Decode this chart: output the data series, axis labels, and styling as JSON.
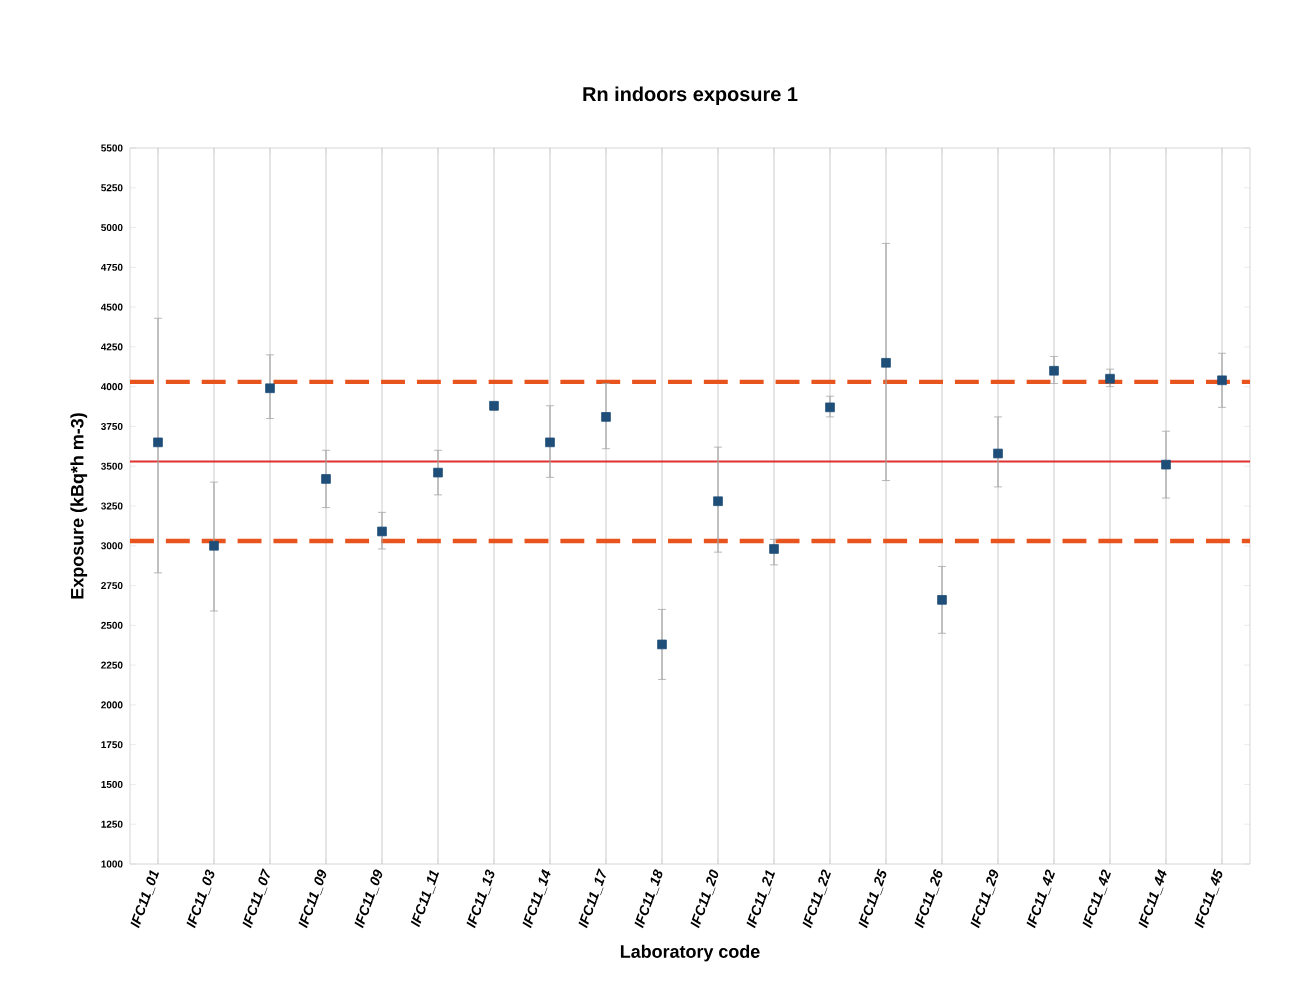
{
  "chart_data": {
    "type": "scatter",
    "title": "Rn indoors exposure 1",
    "xlabel": "Laboratory code",
    "ylabel": "Exposure (kBq*h m-3)",
    "categories": [
      "IFC11_01",
      "IFC11_03",
      "IFC11_07",
      "IFC11_09",
      "IFC11_09",
      "IFC11_11",
      "IFC11_13",
      "IFC11_14",
      "IFC11_17",
      "IFC11_18",
      "IFC11_20",
      "IFC11_21",
      "IFC11_22",
      "IFC11_25",
      "IFC11_26",
      "IFC11_29",
      "IFC11_42",
      "IFC11_42",
      "IFC11_44",
      "IFC11_45"
    ],
    "values": [
      3650,
      3000,
      3990,
      3420,
      3090,
      3460,
      3880,
      3650,
      3810,
      2380,
      3280,
      2980,
      3870,
      4150,
      2660,
      3580,
      4100,
      4050,
      3510,
      4040
    ],
    "errors": [
      [
        2830,
        4430
      ],
      [
        2590,
        3400
      ],
      [
        3800,
        4200
      ],
      [
        3240,
        3600
      ],
      [
        2980,
        3210
      ],
      [
        3320,
        3600
      ],
      [
        3850,
        3900
      ],
      [
        3430,
        3880
      ],
      [
        3610,
        4020
      ],
      [
        2160,
        2600
      ],
      [
        2960,
        3620
      ],
      [
        2880,
        3040
      ],
      [
        3810,
        3940
      ],
      [
        3410,
        4900
      ],
      [
        2450,
        2870
      ],
      [
        3370,
        3810
      ],
      [
        4020,
        4190
      ],
      [
        4000,
        4110
      ],
      [
        3300,
        3720
      ],
      [
        3870,
        4210
      ]
    ],
    "color": "#1f4e79",
    "marker": "square",
    "ylim": [
      1000,
      5500
    ],
    "yticks": [
      1000,
      1250,
      1500,
      1750,
      2000,
      2250,
      2500,
      2750,
      3000,
      3250,
      3500,
      3750,
      4000,
      4250,
      4500,
      4750,
      5000,
      5250,
      5500
    ],
    "ref_lines": [
      {
        "axis": "y",
        "value": 4030,
        "color": "#e8541e",
        "line_style": "dashed"
      },
      {
        "axis": "y",
        "value": 3530,
        "color": "#e03030",
        "line_style": "solid"
      },
      {
        "axis": "y",
        "value": 3030,
        "color": "#e8541e",
        "line_style": "dashed"
      }
    ],
    "grid": "x"
  }
}
